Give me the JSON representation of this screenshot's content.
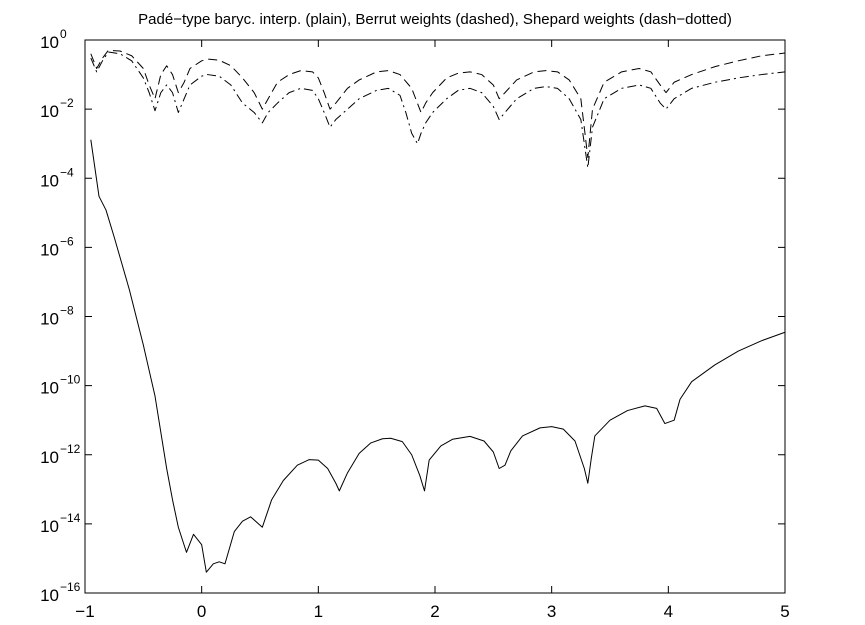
{
  "chart_data": {
    "type": "line",
    "title": "Padé−type baryc. interp. (plain), Berrut weights (dashed), Shepard weights (dash−dotted)",
    "xlabel": "",
    "ylabel": "",
    "xlim": [
      -1,
      5
    ],
    "ylim": [
      1e-16,
      1
    ],
    "yscale": "log",
    "x_ticks": [
      -1,
      0,
      1,
      2,
      3,
      4,
      5
    ],
    "x_tick_labels": [
      "−1",
      "0",
      "1",
      "2",
      "3",
      "4",
      "5"
    ],
    "y_tick_exponents": [
      0,
      -2,
      -4,
      -6,
      -8,
      -10,
      -12,
      -14,
      -16
    ],
    "y_tick_base": "10",
    "grid": false,
    "series": [
      {
        "style": "solid",
        "color": "#000000",
        "points": [
          [
            -0.95,
            0.0013
          ],
          [
            -0.88,
            3e-05
          ],
          [
            -0.82,
            1.2e-05
          ],
          [
            -0.75,
            2e-06
          ],
          [
            -0.62,
            6e-08
          ],
          [
            -0.5,
            1.5e-09
          ],
          [
            -0.4,
            5e-11
          ],
          [
            -0.3,
            4e-13
          ],
          [
            -0.25,
            5e-14
          ],
          [
            -0.2,
            8e-15
          ],
          [
            -0.13,
            1.5e-15
          ],
          [
            -0.07,
            5e-15
          ],
          [
            0.0,
            2.5e-15
          ],
          [
            0.04,
            4e-16
          ],
          [
            0.1,
            7e-16
          ],
          [
            0.15,
            8e-16
          ],
          [
            0.2,
            7e-16
          ],
          [
            0.28,
            6e-15
          ],
          [
            0.35,
            1.2e-14
          ],
          [
            0.42,
            1.6e-14
          ],
          [
            0.52,
            8e-15
          ],
          [
            0.6,
            5e-14
          ],
          [
            0.7,
            1.8e-13
          ],
          [
            0.82,
            5e-13
          ],
          [
            0.92,
            7.2e-13
          ],
          [
            1.0,
            7e-13
          ],
          [
            1.08,
            4e-13
          ],
          [
            1.15,
            1.5e-13
          ],
          [
            1.18,
            9e-14
          ],
          [
            1.25,
            3e-13
          ],
          [
            1.35,
            1.1e-12
          ],
          [
            1.45,
            2.2e-12
          ],
          [
            1.55,
            2.9e-12
          ],
          [
            1.62,
            3e-12
          ],
          [
            1.72,
            2.4e-12
          ],
          [
            1.8,
            1e-12
          ],
          [
            1.87,
            2.5e-13
          ],
          [
            1.91,
            9e-14
          ],
          [
            1.95,
            7e-13
          ],
          [
            2.05,
            1.8e-12
          ],
          [
            2.15,
            2.8e-12
          ],
          [
            2.3,
            3.4e-12
          ],
          [
            2.42,
            2.5e-12
          ],
          [
            2.5,
            1.2e-12
          ],
          [
            2.55,
            4e-13
          ],
          [
            2.6,
            5e-13
          ],
          [
            2.65,
            1.3e-12
          ],
          [
            2.75,
            3.5e-12
          ],
          [
            2.9,
            6e-12
          ],
          [
            3.0,
            6.5e-12
          ],
          [
            3.1,
            5.5e-12
          ],
          [
            3.2,
            2.5e-12
          ],
          [
            3.28,
            4e-13
          ],
          [
            3.31,
            1.5e-13
          ],
          [
            3.34,
            8e-13
          ],
          [
            3.37,
            3.5e-12
          ],
          [
            3.5,
            1e-11
          ],
          [
            3.65,
            1.9e-11
          ],
          [
            3.8,
            2.6e-11
          ],
          [
            3.9,
            2.2e-11
          ],
          [
            3.97,
            8e-12
          ],
          [
            4.05,
            1e-11
          ],
          [
            4.1,
            4e-11
          ],
          [
            4.2,
            1.3e-10
          ],
          [
            4.4,
            4e-10
          ],
          [
            4.6,
            1e-09
          ],
          [
            4.8,
            2e-09
          ],
          [
            5.0,
            3.5e-09
          ]
        ]
      },
      {
        "style": "dashed",
        "color": "#000000",
        "points": [
          [
            -0.95,
            0.4
          ],
          [
            -0.9,
            0.15
          ],
          [
            -0.85,
            0.3
          ],
          [
            -0.8,
            0.5
          ],
          [
            -0.7,
            0.48
          ],
          [
            -0.6,
            0.35
          ],
          [
            -0.5,
            0.15
          ],
          [
            -0.45,
            0.05
          ],
          [
            -0.4,
            0.02
          ],
          [
            -0.35,
            0.1
          ],
          [
            -0.3,
            0.18
          ],
          [
            -0.25,
            0.1
          ],
          [
            -0.2,
            0.03
          ],
          [
            -0.15,
            0.06
          ],
          [
            -0.1,
            0.15
          ],
          [
            0.0,
            0.25
          ],
          [
            0.05,
            0.28
          ],
          [
            0.15,
            0.26
          ],
          [
            0.25,
            0.18
          ],
          [
            0.35,
            0.08
          ],
          [
            0.45,
            0.03
          ],
          [
            0.52,
            0.01
          ],
          [
            0.57,
            0.02
          ],
          [
            0.65,
            0.06
          ],
          [
            0.75,
            0.1
          ],
          [
            0.85,
            0.13
          ],
          [
            0.95,
            0.12
          ],
          [
            1.0,
            0.08
          ],
          [
            1.05,
            0.03
          ],
          [
            1.1,
            0.01
          ],
          [
            1.15,
            0.015
          ],
          [
            1.25,
            0.04
          ],
          [
            1.35,
            0.07
          ],
          [
            1.5,
            0.12
          ],
          [
            1.6,
            0.13
          ],
          [
            1.7,
            0.1
          ],
          [
            1.8,
            0.04
          ],
          [
            1.88,
            0.008
          ],
          [
            1.92,
            0.015
          ],
          [
            1.98,
            0.03
          ],
          [
            2.1,
            0.08
          ],
          [
            2.2,
            0.11
          ],
          [
            2.3,
            0.12
          ],
          [
            2.4,
            0.1
          ],
          [
            2.5,
            0.05
          ],
          [
            2.55,
            0.02
          ],
          [
            2.6,
            0.03
          ],
          [
            2.7,
            0.07
          ],
          [
            2.85,
            0.12
          ],
          [
            2.95,
            0.13
          ],
          [
            3.05,
            0.12
          ],
          [
            3.15,
            0.07
          ],
          [
            3.25,
            0.02
          ],
          [
            3.31,
            0.0004
          ],
          [
            3.35,
            0.01
          ],
          [
            3.45,
            0.06
          ],
          [
            3.6,
            0.12
          ],
          [
            3.75,
            0.15
          ],
          [
            3.85,
            0.12
          ],
          [
            3.93,
            0.05
          ],
          [
            3.98,
            0.03
          ],
          [
            4.05,
            0.06
          ],
          [
            4.2,
            0.1
          ],
          [
            4.4,
            0.17
          ],
          [
            4.6,
            0.25
          ],
          [
            4.8,
            0.35
          ],
          [
            5.0,
            0.42
          ]
        ]
      },
      {
        "style": "dashdot",
        "color": "#000000",
        "points": [
          [
            -0.95,
            0.3
          ],
          [
            -0.9,
            0.12
          ],
          [
            -0.85,
            0.25
          ],
          [
            -0.8,
            0.45
          ],
          [
            -0.7,
            0.4
          ],
          [
            -0.6,
            0.25
          ],
          [
            -0.5,
            0.08
          ],
          [
            -0.45,
            0.03
          ],
          [
            -0.4,
            0.009
          ],
          [
            -0.35,
            0.03
          ],
          [
            -0.3,
            0.05
          ],
          [
            -0.25,
            0.03
          ],
          [
            -0.2,
            0.008
          ],
          [
            -0.15,
            0.02
          ],
          [
            -0.1,
            0.05
          ],
          [
            0.0,
            0.09
          ],
          [
            0.05,
            0.1
          ],
          [
            0.15,
            0.09
          ],
          [
            0.25,
            0.05
          ],
          [
            0.35,
            0.015
          ],
          [
            0.45,
            0.008
          ],
          [
            0.52,
            0.004
          ],
          [
            0.57,
            0.008
          ],
          [
            0.65,
            0.015
          ],
          [
            0.75,
            0.03
          ],
          [
            0.85,
            0.04
          ],
          [
            0.95,
            0.035
          ],
          [
            1.0,
            0.02
          ],
          [
            1.05,
            0.008
          ],
          [
            1.1,
            0.003
          ],
          [
            1.15,
            0.005
          ],
          [
            1.25,
            0.01
          ],
          [
            1.35,
            0.02
          ],
          [
            1.5,
            0.035
          ],
          [
            1.6,
            0.04
          ],
          [
            1.7,
            0.025
          ],
          [
            1.75,
            0.008
          ],
          [
            1.8,
            0.002
          ],
          [
            1.85,
            0.001
          ],
          [
            1.88,
            0.002
          ],
          [
            1.92,
            0.004
          ],
          [
            1.98,
            0.008
          ],
          [
            2.1,
            0.02
          ],
          [
            2.2,
            0.035
          ],
          [
            2.3,
            0.04
          ],
          [
            2.4,
            0.03
          ],
          [
            2.5,
            0.012
          ],
          [
            2.55,
            0.005
          ],
          [
            2.6,
            0.008
          ],
          [
            2.7,
            0.02
          ],
          [
            2.85,
            0.04
          ],
          [
            2.95,
            0.045
          ],
          [
            3.05,
            0.04
          ],
          [
            3.15,
            0.02
          ],
          [
            3.25,
            0.005
          ],
          [
            3.31,
            0.0002
          ],
          [
            3.35,
            0.003
          ],
          [
            3.45,
            0.02
          ],
          [
            3.6,
            0.04
          ],
          [
            3.75,
            0.05
          ],
          [
            3.85,
            0.04
          ],
          [
            3.93,
            0.015
          ],
          [
            3.98,
            0.01
          ],
          [
            4.05,
            0.02
          ],
          [
            4.2,
            0.04
          ],
          [
            4.4,
            0.06
          ],
          [
            4.6,
            0.08
          ],
          [
            4.8,
            0.1
          ],
          [
            5.0,
            0.12
          ]
        ]
      }
    ]
  }
}
